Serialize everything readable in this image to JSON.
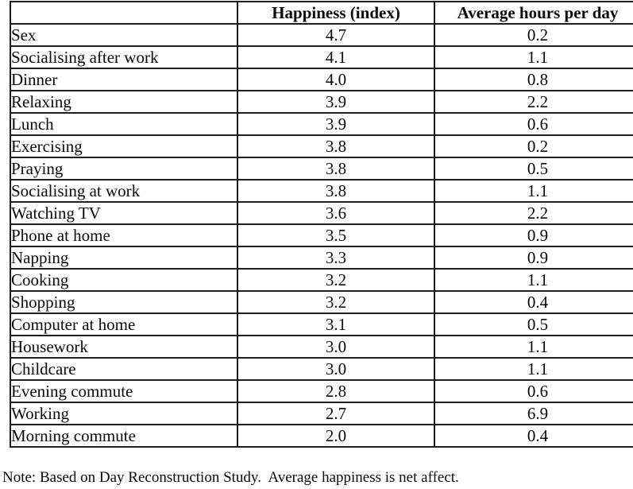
{
  "table": {
    "columns": [
      "",
      "Happiness (index)",
      "Average hours per day"
    ],
    "rows": [
      {
        "activity": "Sex",
        "happiness": "4.7",
        "hours": "0.2"
      },
      {
        "activity": "Socialising after work",
        "happiness": "4.1",
        "hours": "1.1"
      },
      {
        "activity": "Dinner",
        "happiness": "4.0",
        "hours": "0.8"
      },
      {
        "activity": "Relaxing",
        "happiness": "3.9",
        "hours": "2.2"
      },
      {
        "activity": "Lunch",
        "happiness": "3.9",
        "hours": "0.6"
      },
      {
        "activity": "Exercising",
        "happiness": "3.8",
        "hours": "0.2"
      },
      {
        "activity": "Praying",
        "happiness": "3.8",
        "hours": "0.5"
      },
      {
        "activity": "Socialising at work",
        "happiness": "3.8",
        "hours": "1.1"
      },
      {
        "activity": "Watching TV",
        "happiness": "3.6",
        "hours": "2.2"
      },
      {
        "activity": "Phone at home",
        "happiness": "3.5",
        "hours": "0.9"
      },
      {
        "activity": "Napping",
        "happiness": "3.3",
        "hours": "0.9"
      },
      {
        "activity": "Cooking",
        "happiness": "3.2",
        "hours": "1.1"
      },
      {
        "activity": "Shopping",
        "happiness": "3.2",
        "hours": "0.4"
      },
      {
        "activity": "Computer at home",
        "happiness": "3.1",
        "hours": "0.5"
      },
      {
        "activity": "Housework",
        "happiness": "3.0",
        "hours": "1.1"
      },
      {
        "activity": "Childcare",
        "happiness": "3.0",
        "hours": "1.1"
      },
      {
        "activity": "Evening commute",
        "happiness": "2.8",
        "hours": "0.6"
      },
      {
        "activity": "Working",
        "happiness": "2.7",
        "hours": "6.9"
      },
      {
        "activity": "Morning commute",
        "happiness": "2.0",
        "hours": "0.4"
      }
    ]
  },
  "note": "Note: Based on Day Reconstruction Study.  Average happiness is net affect.",
  "colors": {
    "border": "#1e1e1e",
    "text": "#0a0a0a",
    "background": "#ffffff"
  }
}
